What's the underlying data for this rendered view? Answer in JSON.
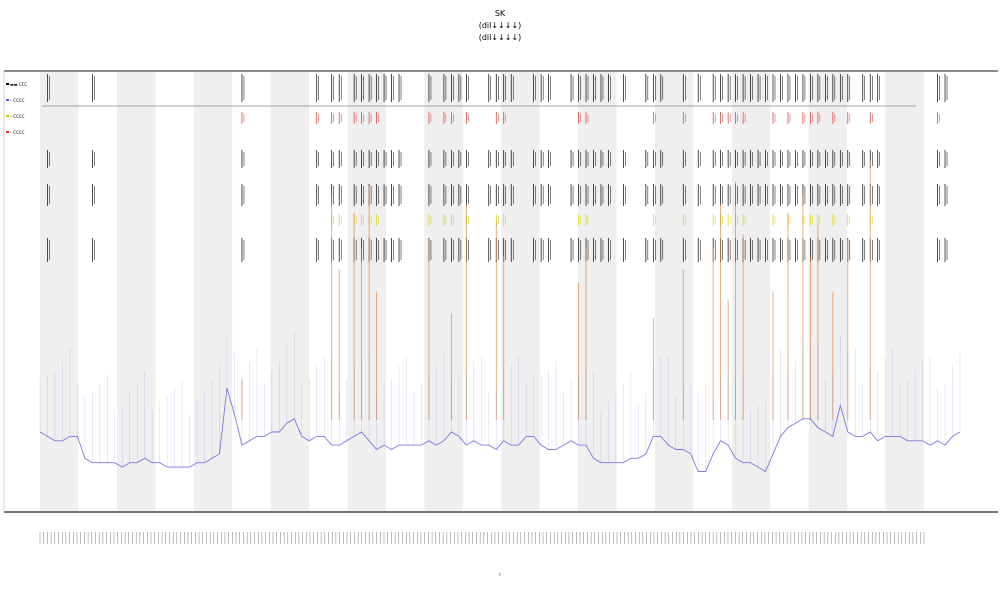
{
  "chart_data": {
    "type": "line",
    "title_lines": [
      "SK",
      "(dil↓↓↓↓)",
      "(dil↓↓↓↓)"
    ],
    "xlabel": "t",
    "ylabel": "",
    "legend": [
      "▬▬ ССС",
      "– СССС",
      "– СССС",
      "– СССС"
    ],
    "legend_position": "top-left",
    "band_count": 23,
    "shaded_bands": [
      0,
      2,
      4,
      6,
      8,
      10,
      12,
      14,
      16,
      18,
      20,
      22
    ],
    "series": [
      {
        "name": "",
        "color": "#5b5be0",
        "style": "line",
        "values": [
          0.18,
          0.17,
          0.16,
          0.16,
          0.17,
          0.17,
          0.12,
          0.11,
          0.11,
          0.11,
          0.11,
          0.1,
          0.11,
          0.11,
          0.12,
          0.11,
          0.11,
          0.1,
          0.1,
          0.1,
          0.1,
          0.11,
          0.11,
          0.12,
          0.13,
          0.28,
          0.22,
          0.15,
          0.16,
          0.17,
          0.17,
          0.18,
          0.18,
          0.2,
          0.21,
          0.17,
          0.16,
          0.17,
          0.17,
          0.15,
          0.15,
          0.16,
          0.17,
          0.18,
          0.16,
          0.14,
          0.15,
          0.14,
          0.15,
          0.15,
          0.15,
          0.15,
          0.16,
          0.15,
          0.16,
          0.18,
          0.17,
          0.15,
          0.16,
          0.15,
          0.15,
          0.14,
          0.16,
          0.15,
          0.15,
          0.17,
          0.17,
          0.15,
          0.14,
          0.14,
          0.15,
          0.16,
          0.15,
          0.15,
          0.12,
          0.11,
          0.11,
          0.11,
          0.11,
          0.12,
          0.12,
          0.13,
          0.17,
          0.17,
          0.15,
          0.14,
          0.14,
          0.13,
          0.09,
          0.09,
          0.13,
          0.16,
          0.15,
          0.12,
          0.11,
          0.11,
          0.1,
          0.09,
          0.13,
          0.17,
          0.19,
          0.2,
          0.21,
          0.21,
          0.19,
          0.18,
          0.17,
          0.24,
          0.18,
          0.17,
          0.17,
          0.18,
          0.16,
          0.17,
          0.17,
          0.17,
          0.16,
          0.16,
          0.16,
          0.15,
          0.16,
          0.15,
          0.17,
          0.18
        ]
      },
      {
        "name": "",
        "color": "#000000",
        "style": "ticks",
        "x_index": [
          1,
          7,
          27,
          37,
          39,
          40,
          42,
          43,
          44,
          45,
          46,
          47,
          48,
          52,
          54,
          55,
          56,
          57,
          60,
          61,
          62,
          63,
          66,
          67,
          68,
          71,
          72,
          73,
          74,
          75,
          76,
          78,
          81,
          82,
          83,
          86,
          88,
          90,
          91,
          92,
          93,
          94,
          95,
          96,
          97,
          98,
          99,
          100,
          101,
          102,
          103,
          104,
          105,
          106,
          107,
          108,
          110,
          111,
          112,
          120,
          121
        ]
      },
      {
        "name": "",
        "color": "#e03030",
        "style": "ticks",
        "x_index": [
          27,
          37,
          39,
          40,
          42,
          43,
          44,
          45,
          52,
          54,
          55,
          57,
          61,
          62,
          72,
          73,
          82,
          86,
          90,
          91,
          92,
          93,
          94,
          98,
          100,
          102,
          103,
          104,
          106,
          108,
          111,
          120
        ]
      },
      {
        "name": "",
        "color": "#d4d400",
        "style": "ticks",
        "x_index": [
          39,
          40,
          42,
          43,
          44,
          45,
          52,
          54,
          55,
          57,
          61,
          62,
          72,
          73,
          82,
          86,
          90,
          91,
          92,
          93,
          94,
          98,
          100,
          102,
          103,
          104,
          106,
          108,
          111
        ]
      },
      {
        "name": "",
        "color": "#e07020",
        "style": "spikes",
        "x_index": [
          27,
          39,
          40,
          42,
          43,
          44,
          45,
          52,
          55,
          57,
          61,
          62,
          72,
          73,
          82,
          86,
          90,
          91,
          92,
          93,
          94,
          98,
          100,
          102,
          103,
          104,
          106,
          108,
          111
        ],
        "values": [
          0.3,
          0.72,
          0.55,
          0.68,
          0.6,
          0.74,
          0.5,
          0.62,
          0.45,
          0.7,
          0.66,
          0.58,
          0.52,
          0.6,
          0.44,
          0.55,
          0.6,
          0.7,
          0.48,
          0.75,
          0.63,
          0.5,
          0.68,
          0.72,
          0.58,
          0.65,
          0.5,
          0.62,
          0.8
        ]
      }
    ],
    "x_ticks_count": 240
  }
}
